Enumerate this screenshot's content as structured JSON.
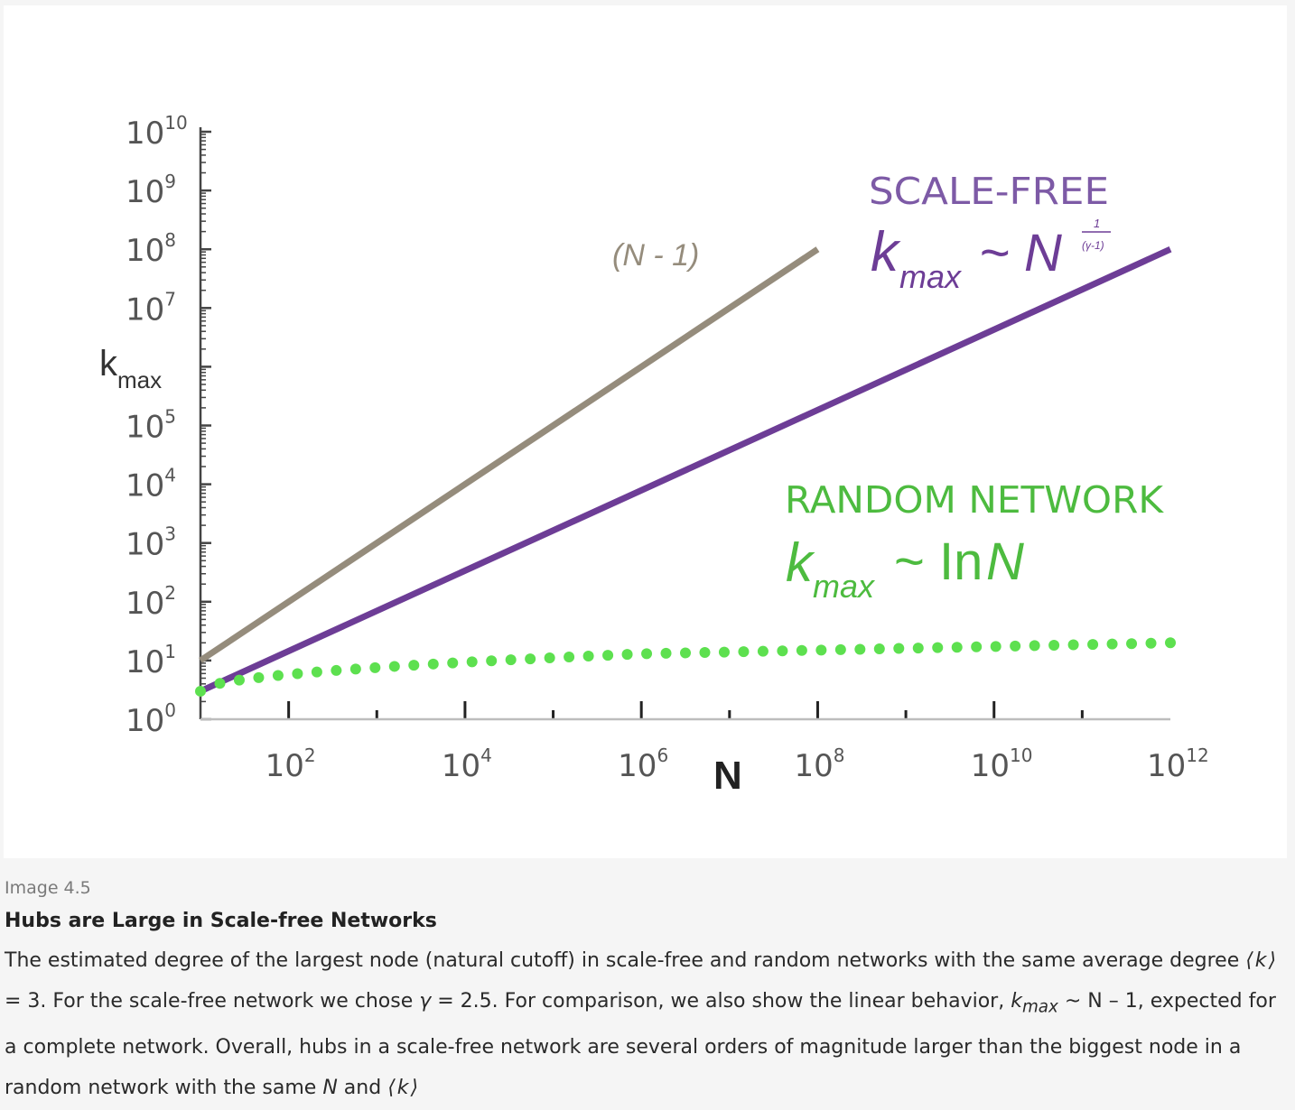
{
  "caption": {
    "image_label": "Image 4.5",
    "title": "Hubs are Large in Scale-free Networks",
    "text_1": "The estimated degree of the largest node (natural cutoff) in scale-free and random networks with the same average degree ",
    "k_avg": "⟨k⟩",
    "text_2": " = 3. For the scale-free network we chose ",
    "gamma": "γ",
    "text_3": " = 2.5. For comparison, we also show the linear behavior, ",
    "kmax_k": "k",
    "kmax_sub": "max",
    "text_4": " ~ N – 1, expected for a complete network. Overall, hubs in a scale-free network are several orders of magnitude larger than the biggest node in a random network with the same ",
    "n_italic": "N",
    "text_5": " and ",
    "k_avg_2": "⟨k⟩"
  },
  "colors": {
    "complete": "#958c7c",
    "scale_free": "#6d3d96",
    "random": "#5de04f",
    "random_label": "#4dbb3f",
    "scale_free_label": "#7d5aa6",
    "axis": "#444444"
  },
  "chart_data": {
    "type": "line",
    "x_scale": "log",
    "y_scale": "log",
    "xlim": [
      10,
      1000000000000
    ],
    "ylim": [
      1,
      10000000000
    ],
    "xlabel": "N",
    "ylabel_main": "k",
    "ylabel_sub": "max",
    "x_ticks": [
      {
        "base": "10",
        "exp": "2"
      },
      {
        "base": "10",
        "exp": "4"
      },
      {
        "base": "10",
        "exp": "6"
      },
      {
        "base": "10",
        "exp": "8"
      },
      {
        "base": "10",
        "exp": "10"
      },
      {
        "base": "10",
        "exp": "12"
      }
    ],
    "y_ticks": [
      {
        "base": "10",
        "exp": "10"
      },
      {
        "base": "10",
        "exp": "9"
      },
      {
        "base": "10",
        "exp": "8"
      },
      {
        "base": "10",
        "exp": "7"
      },
      {
        "base": "10",
        "exp": "5"
      },
      {
        "base": "10",
        "exp": "4"
      },
      {
        "base": "10",
        "exp": "3"
      },
      {
        "base": "10",
        "exp": "2"
      },
      {
        "base": "10",
        "exp": "1"
      },
      {
        "base": "10",
        "exp": "0"
      }
    ],
    "series": [
      {
        "name": "(N - 1)",
        "style": "solid",
        "points": [
          {
            "x": 10,
            "y": 10
          },
          {
            "x": 100000000,
            "y": 100000000
          }
        ]
      },
      {
        "name": "SCALE-FREE",
        "formula_k": "k",
        "formula_sub": "max",
        "formula_rel": "~ N",
        "formula_exp_num": "1",
        "formula_exp_den": "(γ-1)",
        "style": "solid",
        "points": [
          {
            "x": 10,
            "y": 3
          },
          {
            "x": 1000000000000,
            "y": 100000000
          }
        ]
      },
      {
        "name": "RANDOM NETWORK",
        "formula_k": "k",
        "formula_sub": "max",
        "formula_rel": "~ In",
        "formula_var": "N",
        "style": "dotted",
        "points": [
          {
            "x": 10,
            "y": 3
          },
          {
            "x": 1000000,
            "y": 13
          },
          {
            "x": 1000000000000,
            "y": 20
          }
        ]
      }
    ]
  }
}
